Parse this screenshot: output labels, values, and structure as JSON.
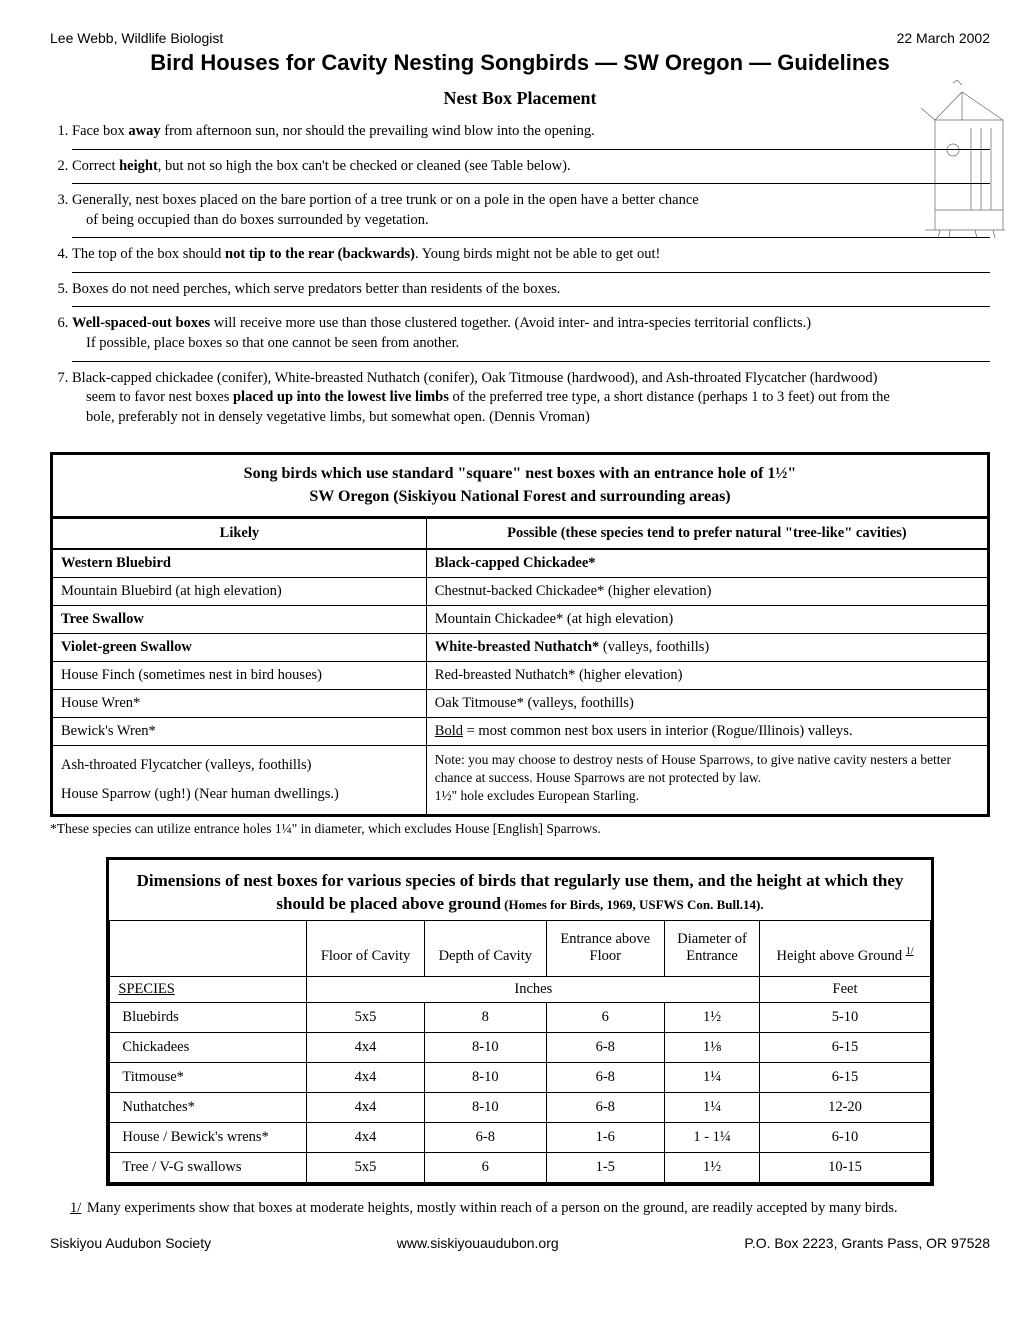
{
  "header": {
    "author": "Lee Webb, Wildlife Biologist",
    "date": "22 March 2002",
    "title": "Bird Houses for Cavity Nesting Songbirds — SW Oregon — Guidelines"
  },
  "placement": {
    "heading": "Nest Box Placement",
    "items": [
      {
        "html": "Face box <b>away</b> from afternoon sun, nor should the prevailing wind blow into the opening.",
        "bordered": true,
        "short": true
      },
      {
        "html": "Correct <b>height</b>, but not so high the box can't be checked or cleaned (see Table below).",
        "bordered": true,
        "short": true
      },
      {
        "html": "Generally, nest boxes placed on the bare portion of a tree trunk or on a pole in the open have a better chance<span class='indent'>of being occupied than do boxes surrounded by  vegetation.</span>",
        "bordered": true,
        "short": true
      },
      {
        "html": "The top of the box should <b>not tip to the rear (backwards)</b>. Young birds might not be able to get out!",
        "bordered": true,
        "short": true
      },
      {
        "html": "Boxes do not need perches, which serve predators better than residents of the boxes.",
        "bordered": true,
        "short": false
      },
      {
        "html": "<b>Well-spaced-out boxes</b> will receive more use than those clustered together. (Avoid inter- and intra-species territorial conflicts.)<span class='indent'>If possible, place boxes so that one cannot be seen from another.</span>",
        "bordered": true,
        "short": false
      },
      {
        "html": "Black-capped chickadee (conifer), White-breasted Nuthatch (conifer), Oak Titmouse (hardwood), and Ash-throated Flycatcher (hardwood)<span class='indent'>seem to favor nest boxes <b>placed up into the lowest live limbs</b> of the preferred tree type, a short distance (perhaps 1 to 3 feet) out from the</span><span class='indent'>bole, preferably not in densely vegetative limbs, but somewhat open. (Dennis Vroman)</span>",
        "bordered": false,
        "short": false
      }
    ]
  },
  "species_table": {
    "title_line1": "Song birds which use standard \"square\" nest boxes with an entrance hole of 1½\"",
    "title_line2": "SW Oregon (Siskiyou National Forest and surrounding areas)",
    "col_likely": "Likely",
    "col_possible": "Possible (these species tend to prefer natural \"tree-like\" cavities)",
    "rows": [
      {
        "left_html": "<b>Western Bluebird</b>",
        "right_html": "<b>Black-capped Chickadee*</b>"
      },
      {
        "left_html": "Mountain Bluebird (at high elevation)",
        "right_html": "Chestnut-backed Chickadee* (higher elevation)"
      },
      {
        "left_html": "<b>Tree Swallow</b>",
        "right_html": "Mountain Chickadee* (at high elevation)"
      },
      {
        "left_html": "<b>Violet-green Swallow</b>",
        "right_html": "<b>White-breasted Nuthatch*</b> (valleys, foothills)"
      },
      {
        "left_html": "House Finch (sometimes nest in bird houses)",
        "right_html": "Red-breasted Nuthatch* (higher elevation)"
      },
      {
        "left_html": "House Wren*",
        "right_html": "Oak Titmouse* (valleys, foothills)"
      },
      {
        "left_html": "Bewick's Wren*",
        "right_html": "<u>Bold</u> = most common nest box users in interior (Rogue/Illinois) valleys."
      }
    ],
    "bottom_left": [
      "Ash-throated Flycatcher (valleys, foothills)",
      "House Sparrow (ugh!) (Near human dwellings.)"
    ],
    "bottom_right": "Note: you may choose to destroy nests of House Sparrows, to give native cavity nesters a better chance at success. House Sparrows are not protected by law.<br>1½\" hole excludes European Starling.",
    "footnote": "*These species can utilize entrance holes 1¼\" in diameter, which excludes House [English] Sparrows."
  },
  "dimensions_table": {
    "title": "Dimensions of nest boxes for various species of birds that regularly use them, and the height at which they should be placed above ground",
    "title_sub": " (Homes for Birds, 1969, USFWS Con. Bull.14).",
    "columns": {
      "species": "SPECIES",
      "floor": "Floor of Cavity",
      "depth": "Depth of Cavity",
      "entrance_above": "Entrance above Floor",
      "diameter": "Diameter of Entrance",
      "height": "Height above Ground ",
      "height_fn": "1/"
    },
    "unit_inches": "Inches",
    "unit_feet": "Feet",
    "rows": [
      {
        "sp": "Bluebirds",
        "floor": "5x5",
        "depth": "8",
        "ent": "6",
        "dia": "1½",
        "hgt": "5-10"
      },
      {
        "sp": "Chickadees",
        "floor": "4x4",
        "depth": "8-10",
        "ent": "6-8",
        "dia": "1⅛",
        "hgt": "6-15"
      },
      {
        "sp": "Titmouse*",
        "floor": "4x4",
        "depth": "8-10",
        "ent": "6-8",
        "dia": "1¼",
        "hgt": "6-15"
      },
      {
        "sp": "Nuthatches*",
        "floor": "4x4",
        "depth": "8-10",
        "ent": "6-8",
        "dia": "1¼",
        "hgt": "12-20"
      },
      {
        "sp": "House / Bewick's wrens*",
        "floor": "4x4",
        "depth": "6-8",
        "ent": "1-6",
        "dia": "1 - 1¼",
        "hgt": "6-10"
      },
      {
        "sp": "Tree / V-G swallows",
        "floor": "5x5",
        "depth": "6",
        "ent": "1-5",
        "dia": "1½",
        "hgt": "10-15"
      }
    ],
    "footnote_ref": "1/",
    "footnote": " Many experiments show that boxes at moderate heights, mostly within reach of a person on the ground, are readily accepted by many birds."
  },
  "footer": {
    "left": "Siskiyou Audubon Society",
    "center": "www.siskiyouaudubon.org",
    "right": "P.O. Box 2223, Grants Pass, OR 97528"
  }
}
